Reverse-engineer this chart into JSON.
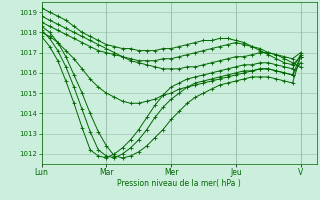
{
  "xlabel": "Pression niveau de la mer( hPa )",
  "bg_color": "#cceedd",
  "grid_color": "#99bbaa",
  "line_color": "#006600",
  "ylim": [
    1011.5,
    1019.5
  ],
  "yticks": [
    1012,
    1013,
    1014,
    1015,
    1016,
    1017,
    1018,
    1019
  ],
  "xtick_labels": [
    "Lun",
    "Mar",
    "Mer",
    "Jeu",
    "V"
  ],
  "xtick_positions": [
    0,
    2,
    4,
    6,
    8
  ],
  "xlim": [
    0,
    8.5
  ],
  "series": [
    [
      1018.8,
      1018.6,
      1018.4,
      1018.2,
      1018.0,
      1017.8,
      1017.6,
      1017.4,
      1017.2,
      1017.0,
      1016.8,
      1016.6,
      1016.5,
      1016.4,
      1016.3,
      1016.2,
      1016.2,
      1016.2,
      1016.3,
      1016.3,
      1016.4,
      1016.5,
      1016.6,
      1016.7,
      1016.8,
      1016.8,
      1016.9,
      1017.0,
      1017.0,
      1016.9,
      1016.8,
      1016.7,
      1017.0
    ],
    [
      1019.2,
      1019.0,
      1018.8,
      1018.6,
      1018.3,
      1018.0,
      1017.8,
      1017.6,
      1017.4,
      1017.3,
      1017.2,
      1017.2,
      1017.1,
      1017.1,
      1017.1,
      1017.2,
      1017.2,
      1017.3,
      1017.4,
      1017.5,
      1017.6,
      1017.6,
      1017.7,
      1017.7,
      1017.6,
      1017.5,
      1017.3,
      1017.2,
      1017.0,
      1016.9,
      1016.7,
      1016.5,
      1016.3
    ],
    [
      1018.5,
      1018.3,
      1018.1,
      1017.9,
      1017.7,
      1017.5,
      1017.3,
      1017.1,
      1017.0,
      1016.9,
      1016.8,
      1016.7,
      1016.6,
      1016.6,
      1016.6,
      1016.7,
      1016.7,
      1016.8,
      1016.9,
      1017.0,
      1017.1,
      1017.2,
      1017.3,
      1017.4,
      1017.5,
      1017.4,
      1017.3,
      1017.1,
      1016.9,
      1016.7,
      1016.5,
      1016.4,
      1016.8
    ],
    [
      1018.0,
      1017.8,
      1017.5,
      1017.1,
      1016.7,
      1016.2,
      1015.7,
      1015.3,
      1015.0,
      1014.8,
      1014.6,
      1014.5,
      1014.5,
      1014.6,
      1014.7,
      1014.9,
      1015.0,
      1015.2,
      1015.3,
      1015.4,
      1015.5,
      1015.6,
      1015.7,
      1015.8,
      1015.9,
      1016.0,
      1016.1,
      1016.2,
      1016.2,
      1016.1,
      1016.0,
      1015.9,
      1016.5
    ],
    [
      1018.3,
      1018.0,
      1017.5,
      1016.8,
      1015.9,
      1015.0,
      1014.0,
      1013.1,
      1012.4,
      1011.9,
      1011.8,
      1011.9,
      1012.1,
      1012.4,
      1012.8,
      1013.2,
      1013.7,
      1014.1,
      1014.5,
      1014.8,
      1015.0,
      1015.2,
      1015.4,
      1015.5,
      1015.6,
      1015.7,
      1015.8,
      1015.8,
      1015.8,
      1015.7,
      1015.6,
      1015.5,
      1016.8
    ],
    [
      1018.1,
      1017.7,
      1017.1,
      1016.3,
      1015.3,
      1014.2,
      1013.1,
      1012.2,
      1011.9,
      1011.8,
      1012.0,
      1012.3,
      1012.7,
      1013.2,
      1013.8,
      1014.3,
      1014.7,
      1015.0,
      1015.3,
      1015.5,
      1015.6,
      1015.7,
      1015.8,
      1015.9,
      1016.0,
      1016.1,
      1016.1,
      1016.2,
      1016.2,
      1016.1,
      1016.0,
      1015.9,
      1016.8
    ],
    [
      1017.8,
      1017.3,
      1016.6,
      1015.6,
      1014.5,
      1013.3,
      1012.2,
      1011.9,
      1011.8,
      1012.0,
      1012.3,
      1012.7,
      1013.2,
      1013.8,
      1014.4,
      1014.9,
      1015.3,
      1015.5,
      1015.7,
      1015.8,
      1015.9,
      1016.0,
      1016.1,
      1016.2,
      1016.3,
      1016.4,
      1016.4,
      1016.5,
      1016.5,
      1016.4,
      1016.3,
      1016.2,
      1016.9
    ]
  ]
}
